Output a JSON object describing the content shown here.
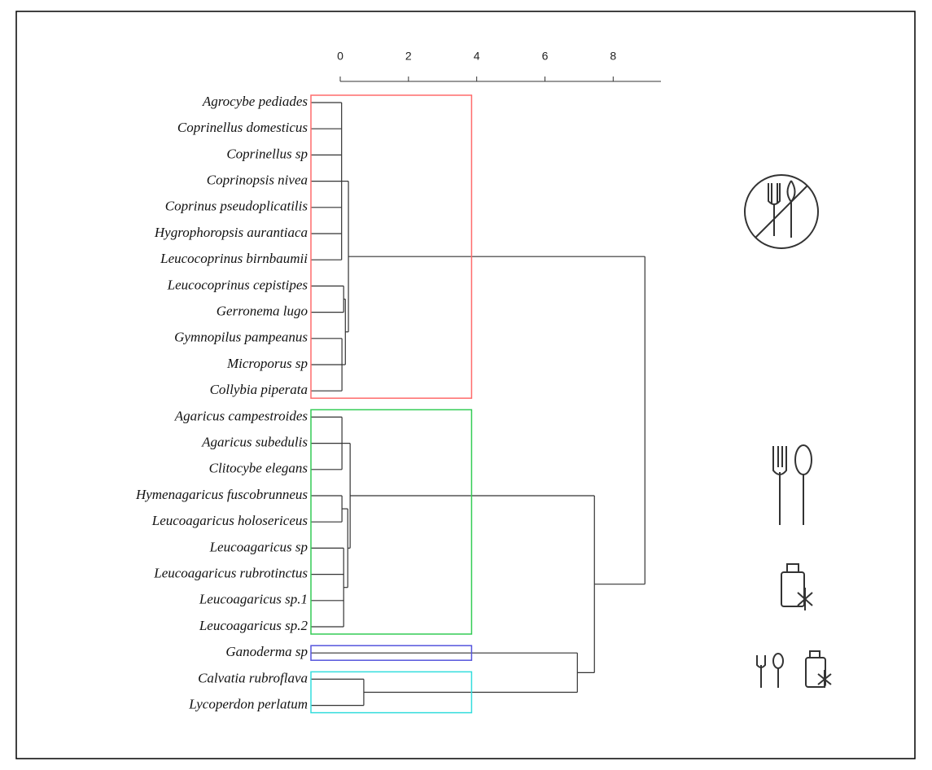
{
  "chart_data": {
    "type": "dendrogram",
    "xlim": [
      0,
      9.4
    ],
    "xticks": [
      0,
      2,
      4,
      6,
      8
    ],
    "threshold": 3.85,
    "tree": {
      "height": 8.93,
      "children": [
        {
          "height": 0.24,
          "color": "#ff6b6b",
          "children": [
            {
              "height": 0.04,
              "children": [
                "Agrocybe pediades",
                "Coprinellus domesticus",
                "Coprinellus sp",
                "Coprinopsis nivea",
                "Coprinus pseudoplicatilis",
                "Hygrophoropsis aurantiaca",
                "Leucocoprinus birnbaumii"
              ]
            },
            {
              "height": 0.15,
              "children": [
                {
                  "height": 0.1,
                  "children": [
                    "Leucocoprinus cepistipes",
                    "Gerronema lugo"
                  ]
                },
                {
                  "height": 0.05,
                  "children": [
                    "Gymnopilus pampeanus",
                    "Microporus sp",
                    "Collybia piperata"
                  ]
                }
              ]
            }
          ]
        },
        {
          "height": 7.45,
          "children": [
            {
              "height": 0.29,
              "color": "#33cc55",
              "children": [
                {
                  "height": 0.05,
                  "children": [
                    "Agaricus campestroides",
                    "Agaricus subedulis",
                    "Clitocybe elegans"
                  ]
                },
                {
                  "height": 0.22,
                  "children": [
                    {
                      "height": 0.05,
                      "children": [
                        "Hymenagaricus fuscobrunneus",
                        "Leucoagaricus holosericeus"
                      ]
                    },
                    {
                      "height": 0.1,
                      "children": [
                        "Leucoagaricus sp",
                        "Leucoagaricus rubrotinctus",
                        "Leucoagaricus sp.1",
                        "Leucoagaricus sp.2"
                      ]
                    }
                  ]
                }
              ]
            },
            {
              "height": 6.95,
              "children": [
                {
                  "color": "#5555dd",
                  "children": [
                    "Ganoderma sp"
                  ]
                },
                {
                  "height": 0.69,
                  "color": "#33dddd",
                  "children": [
                    "Calvatia rubroflava",
                    "Lycoperdon perlatum"
                  ]
                }
              ]
            }
          ]
        }
      ]
    }
  }
}
